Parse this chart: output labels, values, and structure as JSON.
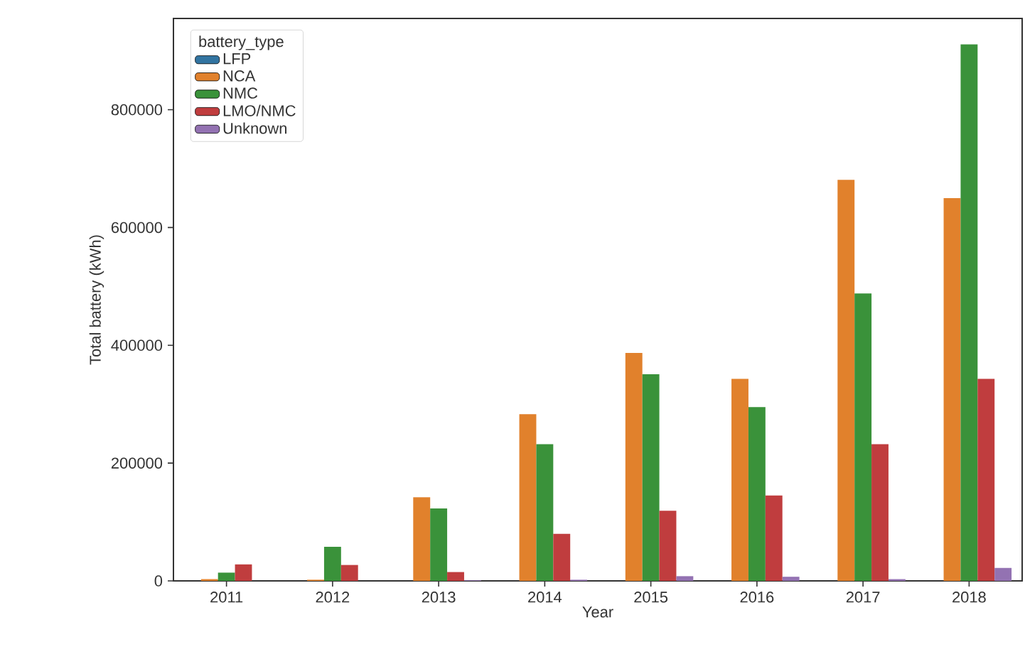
{
  "chart_data": {
    "type": "bar",
    "xlabel": "Year",
    "ylabel": "Total battery (kWh)",
    "legend_title": "battery_type",
    "categories": [
      "2011",
      "2012",
      "2013",
      "2014",
      "2015",
      "2016",
      "2017",
      "2018"
    ],
    "series": [
      {
        "name": "LFP",
        "color": "#3274a1",
        "values": [
          0,
          0,
          0,
          0,
          0,
          0,
          0,
          0
        ]
      },
      {
        "name": "NCA",
        "color": "#e1812c",
        "values": [
          3000,
          2000,
          142000,
          283000,
          387000,
          343000,
          681000,
          650000
        ]
      },
      {
        "name": "NMC",
        "color": "#3a923a",
        "values": [
          14000,
          58000,
          123000,
          232000,
          351000,
          295000,
          488000,
          911000
        ]
      },
      {
        "name": "LMO/NMC",
        "color": "#c03d3e",
        "values": [
          28000,
          27000,
          15000,
          80000,
          119000,
          145000,
          232000,
          343000
        ]
      },
      {
        "name": "Unknown",
        "color": "#9372b2",
        "values": [
          0,
          0,
          1000,
          2000,
          8000,
          7000,
          3000,
          22000
        ]
      }
    ],
    "ylim": [
      0,
      955000
    ],
    "yticks": [
      0,
      200000,
      400000,
      600000,
      800000
    ],
    "grid": false,
    "legend": "top left"
  }
}
